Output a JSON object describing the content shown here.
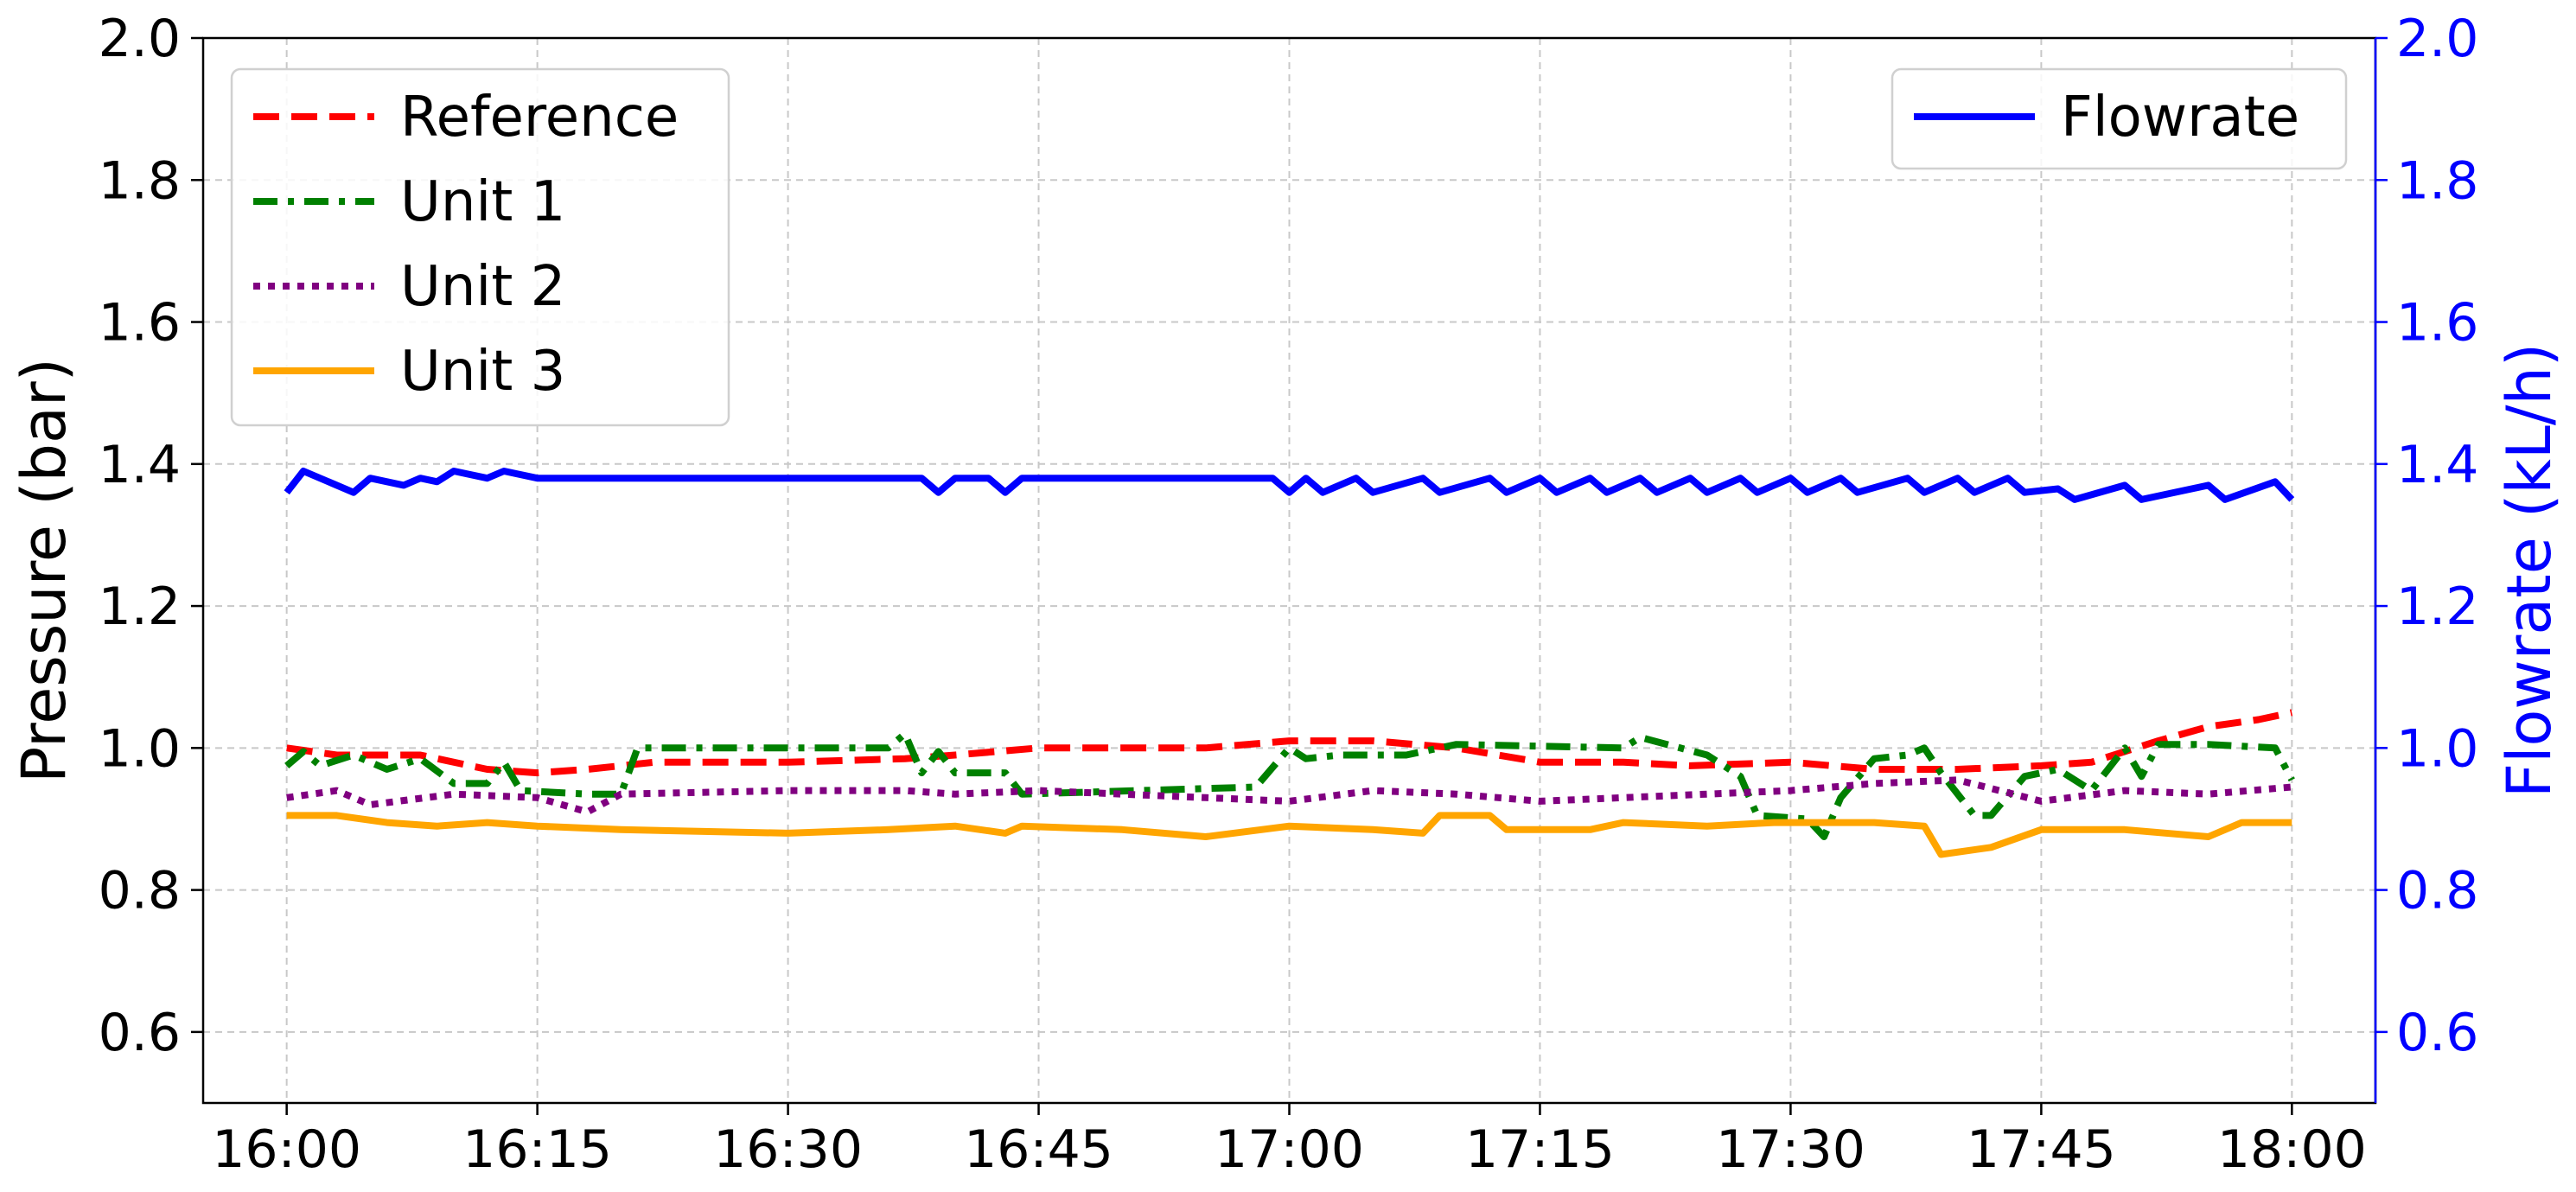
{
  "chart_data": {
    "type": "line",
    "x_ticks": [
      "16:00",
      "16:15",
      "16:30",
      "16:45",
      "17:00",
      "17:15",
      "17:30",
      "17:45",
      "18:00"
    ],
    "xlim": [
      "15:55",
      "18:05"
    ],
    "y_left": {
      "label": "Pressure (bar)",
      "ylim": [
        0.5,
        2.0
      ],
      "ticks": [
        "0.6",
        "0.8",
        "1.0",
        "1.2",
        "1.4",
        "1.6",
        "1.8",
        "2.0"
      ]
    },
    "y_right": {
      "label": "Flowrate (kL/h)",
      "ylim": [
        0.5,
        2.0
      ],
      "ticks": [
        "0.6",
        "0.8",
        "1.0",
        "1.2",
        "1.4",
        "1.6",
        "1.8",
        "2.0"
      ],
      "color": "#0000ff"
    },
    "grid": true,
    "legend_left": {
      "placement": "upper-left",
      "entries": [
        "Reference",
        "Unit 1",
        "Unit 2",
        "Unit 3"
      ]
    },
    "legend_right": {
      "placement": "upper-right",
      "entries": [
        "Flowrate"
      ]
    },
    "series": [
      {
        "name": "Reference",
        "axis": "left",
        "color": "#ff0000",
        "style": "dashed",
        "points": [
          [
            "16:00",
            1.0
          ],
          [
            "16:03",
            0.99
          ],
          [
            "16:08",
            0.99
          ],
          [
            "16:12",
            0.97
          ],
          [
            "16:15",
            0.965
          ],
          [
            "16:18",
            0.97
          ],
          [
            "16:22",
            0.98
          ],
          [
            "16:30",
            0.98
          ],
          [
            "16:37",
            0.985
          ],
          [
            "16:40",
            0.99
          ],
          [
            "16:45",
            1.0
          ],
          [
            "16:55",
            1.0
          ],
          [
            "17:00",
            1.01
          ],
          [
            "17:05",
            1.01
          ],
          [
            "17:10",
            1.0
          ],
          [
            "17:15",
            0.98
          ],
          [
            "17:20",
            0.98
          ],
          [
            "17:24",
            0.975
          ],
          [
            "17:30",
            0.98
          ],
          [
            "17:35",
            0.97
          ],
          [
            "17:40",
            0.97
          ],
          [
            "17:45",
            0.975
          ],
          [
            "17:48",
            0.98
          ],
          [
            "17:52",
            1.01
          ],
          [
            "17:55",
            1.03
          ],
          [
            "17:58",
            1.04
          ],
          [
            "18:00",
            1.05
          ]
        ]
      },
      {
        "name": "Unit 1",
        "axis": "left",
        "color": "#008000",
        "style": "dashdot",
        "points": [
          [
            "16:00",
            0.975
          ],
          [
            "16:01",
            0.995
          ],
          [
            "16:02",
            0.975
          ],
          [
            "16:04",
            0.99
          ],
          [
            "16:06",
            0.97
          ],
          [
            "16:08",
            0.985
          ],
          [
            "16:10",
            0.95
          ],
          [
            "16:12",
            0.95
          ],
          [
            "16:13",
            0.98
          ],
          [
            "16:14",
            0.94
          ],
          [
            "16:18",
            0.935
          ],
          [
            "16:20",
            0.935
          ],
          [
            "16:21",
            1.0
          ],
          [
            "16:36",
            1.0
          ],
          [
            "16:37",
            1.02
          ],
          [
            "16:38",
            0.965
          ],
          [
            "16:39",
            0.995
          ],
          [
            "16:40",
            0.965
          ],
          [
            "16:43",
            0.965
          ],
          [
            "16:44",
            0.935
          ],
          [
            "16:58",
            0.945
          ],
          [
            "17:00",
            1.0
          ],
          [
            "17:01",
            0.985
          ],
          [
            "17:03",
            0.99
          ],
          [
            "17:07",
            0.99
          ],
          [
            "17:10",
            1.005
          ],
          [
            "17:20",
            1.0
          ],
          [
            "17:21",
            1.015
          ],
          [
            "17:25",
            0.99
          ],
          [
            "17:27",
            0.96
          ],
          [
            "17:28",
            0.905
          ],
          [
            "17:31",
            0.9
          ],
          [
            "17:32",
            0.875
          ],
          [
            "17:33",
            0.93
          ],
          [
            "17:35",
            0.985
          ],
          [
            "17:37",
            0.99
          ],
          [
            "17:38",
            1.0
          ],
          [
            "17:39",
            0.965
          ],
          [
            "17:41",
            0.905
          ],
          [
            "17:42",
            0.905
          ],
          [
            "17:44",
            0.96
          ],
          [
            "17:46",
            0.97
          ],
          [
            "17:48",
            0.94
          ],
          [
            "17:50",
            1.0
          ],
          [
            "17:51",
            0.96
          ],
          [
            "17:52",
            1.005
          ],
          [
            "17:55",
            1.005
          ],
          [
            "17:59",
            1.0
          ],
          [
            "18:00",
            0.955
          ]
        ]
      },
      {
        "name": "Unit 2",
        "axis": "left",
        "color": "#800080",
        "style": "dotted",
        "points": [
          [
            "16:00",
            0.93
          ],
          [
            "16:03",
            0.94
          ],
          [
            "16:05",
            0.92
          ],
          [
            "16:10",
            0.935
          ],
          [
            "16:15",
            0.93
          ],
          [
            "16:18",
            0.91
          ],
          [
            "16:20",
            0.935
          ],
          [
            "16:30",
            0.94
          ],
          [
            "16:37",
            0.94
          ],
          [
            "16:40",
            0.935
          ],
          [
            "16:45",
            0.94
          ],
          [
            "16:55",
            0.93
          ],
          [
            "17:00",
            0.925
          ],
          [
            "17:05",
            0.94
          ],
          [
            "17:10",
            0.935
          ],
          [
            "17:15",
            0.925
          ],
          [
            "17:20",
            0.93
          ],
          [
            "17:25",
            0.935
          ],
          [
            "17:30",
            0.94
          ],
          [
            "17:35",
            0.95
          ],
          [
            "17:40",
            0.955
          ],
          [
            "17:45",
            0.925
          ],
          [
            "17:50",
            0.94
          ],
          [
            "17:55",
            0.935
          ],
          [
            "18:00",
            0.945
          ]
        ]
      },
      {
        "name": "Unit 3",
        "axis": "left",
        "color": "#ffa500",
        "style": "solid",
        "points": [
          [
            "16:00",
            0.905
          ],
          [
            "16:03",
            0.905
          ],
          [
            "16:06",
            0.895
          ],
          [
            "16:09",
            0.89
          ],
          [
            "16:12",
            0.895
          ],
          [
            "16:15",
            0.89
          ],
          [
            "16:20",
            0.885
          ],
          [
            "16:30",
            0.88
          ],
          [
            "16:36",
            0.885
          ],
          [
            "16:40",
            0.89
          ],
          [
            "16:43",
            0.88
          ],
          [
            "16:44",
            0.89
          ],
          [
            "16:50",
            0.885
          ],
          [
            "16:55",
            0.875
          ],
          [
            "17:00",
            0.89
          ],
          [
            "17:05",
            0.885
          ],
          [
            "17:08",
            0.88
          ],
          [
            "17:09",
            0.905
          ],
          [
            "17:12",
            0.905
          ],
          [
            "17:13",
            0.885
          ],
          [
            "17:18",
            0.885
          ],
          [
            "17:20",
            0.895
          ],
          [
            "17:25",
            0.89
          ],
          [
            "17:29",
            0.895
          ],
          [
            "17:35",
            0.895
          ],
          [
            "17:38",
            0.89
          ],
          [
            "17:39",
            0.85
          ],
          [
            "17:42",
            0.86
          ],
          [
            "17:45",
            0.885
          ],
          [
            "17:50",
            0.885
          ],
          [
            "17:55",
            0.875
          ],
          [
            "17:57",
            0.895
          ],
          [
            "18:00",
            0.895
          ]
        ]
      },
      {
        "name": "Flowrate",
        "axis": "right",
        "color": "#0000ff",
        "style": "solid",
        "points": [
          [
            "16:00",
            1.36
          ],
          [
            "16:01",
            1.39
          ],
          [
            "16:04",
            1.36
          ],
          [
            "16:05",
            1.38
          ],
          [
            "16:07",
            1.37
          ],
          [
            "16:08",
            1.38
          ],
          [
            "16:09",
            1.375
          ],
          [
            "16:10",
            1.39
          ],
          [
            "16:12",
            1.38
          ],
          [
            "16:13",
            1.39
          ],
          [
            "16:15",
            1.38
          ],
          [
            "16:38",
            1.38
          ],
          [
            "16:39",
            1.36
          ],
          [
            "16:40",
            1.38
          ],
          [
            "16:42",
            1.38
          ],
          [
            "16:43",
            1.36
          ],
          [
            "16:44",
            1.38
          ],
          [
            "16:59",
            1.38
          ],
          [
            "17:00",
            1.36
          ],
          [
            "17:01",
            1.38
          ],
          [
            "17:02",
            1.36
          ],
          [
            "17:04",
            1.38
          ],
          [
            "17:05",
            1.36
          ],
          [
            "17:08",
            1.38
          ],
          [
            "17:09",
            1.36
          ],
          [
            "17:12",
            1.38
          ],
          [
            "17:13",
            1.36
          ],
          [
            "17:15",
            1.38
          ],
          [
            "17:16",
            1.36
          ],
          [
            "17:18",
            1.38
          ],
          [
            "17:19",
            1.36
          ],
          [
            "17:21",
            1.38
          ],
          [
            "17:22",
            1.36
          ],
          [
            "17:24",
            1.38
          ],
          [
            "17:25",
            1.36
          ],
          [
            "17:27",
            1.38
          ],
          [
            "17:28",
            1.36
          ],
          [
            "17:30",
            1.38
          ],
          [
            "17:31",
            1.36
          ],
          [
            "17:33",
            1.38
          ],
          [
            "17:34",
            1.36
          ],
          [
            "17:37",
            1.38
          ],
          [
            "17:38",
            1.36
          ],
          [
            "17:40",
            1.38
          ],
          [
            "17:41",
            1.36
          ],
          [
            "17:43",
            1.38
          ],
          [
            "17:44",
            1.36
          ],
          [
            "17:46",
            1.365
          ],
          [
            "17:47",
            1.35
          ],
          [
            "17:50",
            1.37
          ],
          [
            "17:51",
            1.35
          ],
          [
            "17:55",
            1.37
          ],
          [
            "17:56",
            1.35
          ],
          [
            "17:59",
            1.375
          ],
          [
            "18:00",
            1.35
          ]
        ]
      }
    ]
  }
}
